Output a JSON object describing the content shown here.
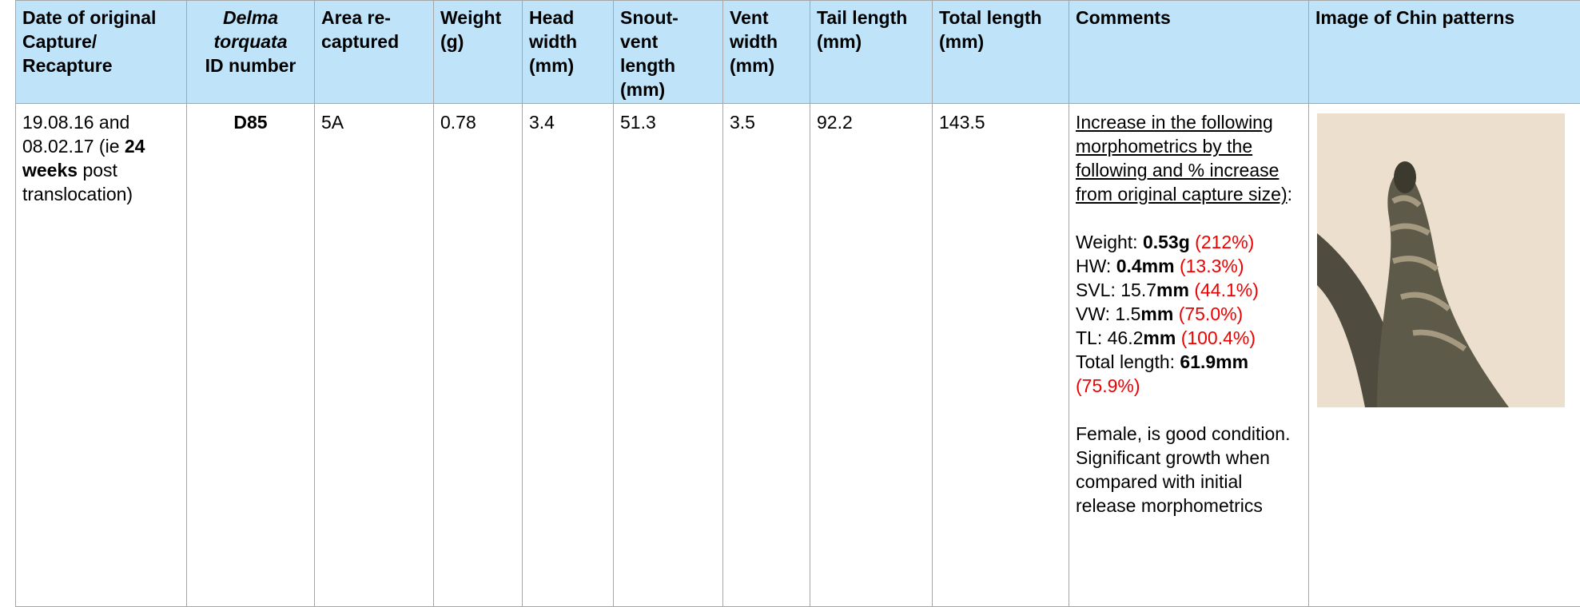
{
  "table": {
    "headers": [
      "Date of original Capture/ Recapture",
      {
        "italic": "Delma torquata",
        "text": "ID number"
      },
      "Area re-captured",
      "Weight (g)",
      "Head width (mm)",
      "Snout-vent length (mm)",
      "Vent width (mm)",
      "Tail length (mm)",
      "Total length (mm)",
      "Comments",
      "Image of Chin patterns"
    ],
    "row": {
      "date": [
        {
          "t": "19.08.16 and 08.02.17 (ie "
        },
        {
          "t": "24 weeks",
          "bold": true
        },
        {
          "t": " post translocation)"
        }
      ],
      "id": "D85",
      "cells": [
        "5A",
        "0.78",
        "3.4",
        "51.3",
        "3.5",
        "92.2",
        "143.5"
      ],
      "comments": {
        "intro": "Increase in the following morphometrics by the following and % increase from original capture size)",
        "intro_end": ":",
        "lines": [
          [
            {
              "t": "Weight: "
            },
            {
              "t": "0.53g",
              "bold": true
            },
            {
              "t": "(212%)",
              "red": true
            }
          ],
          [
            {
              "t": "HW: "
            },
            {
              "t": "0.4mm",
              "bold": true
            },
            {
              "t": "(13.3%)",
              "red": true
            }
          ],
          [
            {
              "t": "SVL: 15.7"
            },
            {
              "t": "mm",
              "bold": true
            },
            {
              "t": "(44.1%)",
              "red": true
            }
          ],
          [
            {
              "t": "VW: 1.5"
            },
            {
              "t": "mm",
              "bold": true
            },
            {
              "t": "(75.0%)",
              "red": true
            }
          ],
          [
            {
              "t": "TL: 46.2"
            },
            {
              "t": "mm",
              "bold": true
            },
            {
              "t": "(100.4%)",
              "red": true
            }
          ],
          [
            {
              "t": "Total length: "
            },
            {
              "t": "61.9mm",
              "bold": true
            },
            {
              "t": "(75.9%)",
              "red": true
            }
          ]
        ],
        "note": "Female, is good condition. Significant growth when compared with initial release morphometrics"
      }
    }
  }
}
